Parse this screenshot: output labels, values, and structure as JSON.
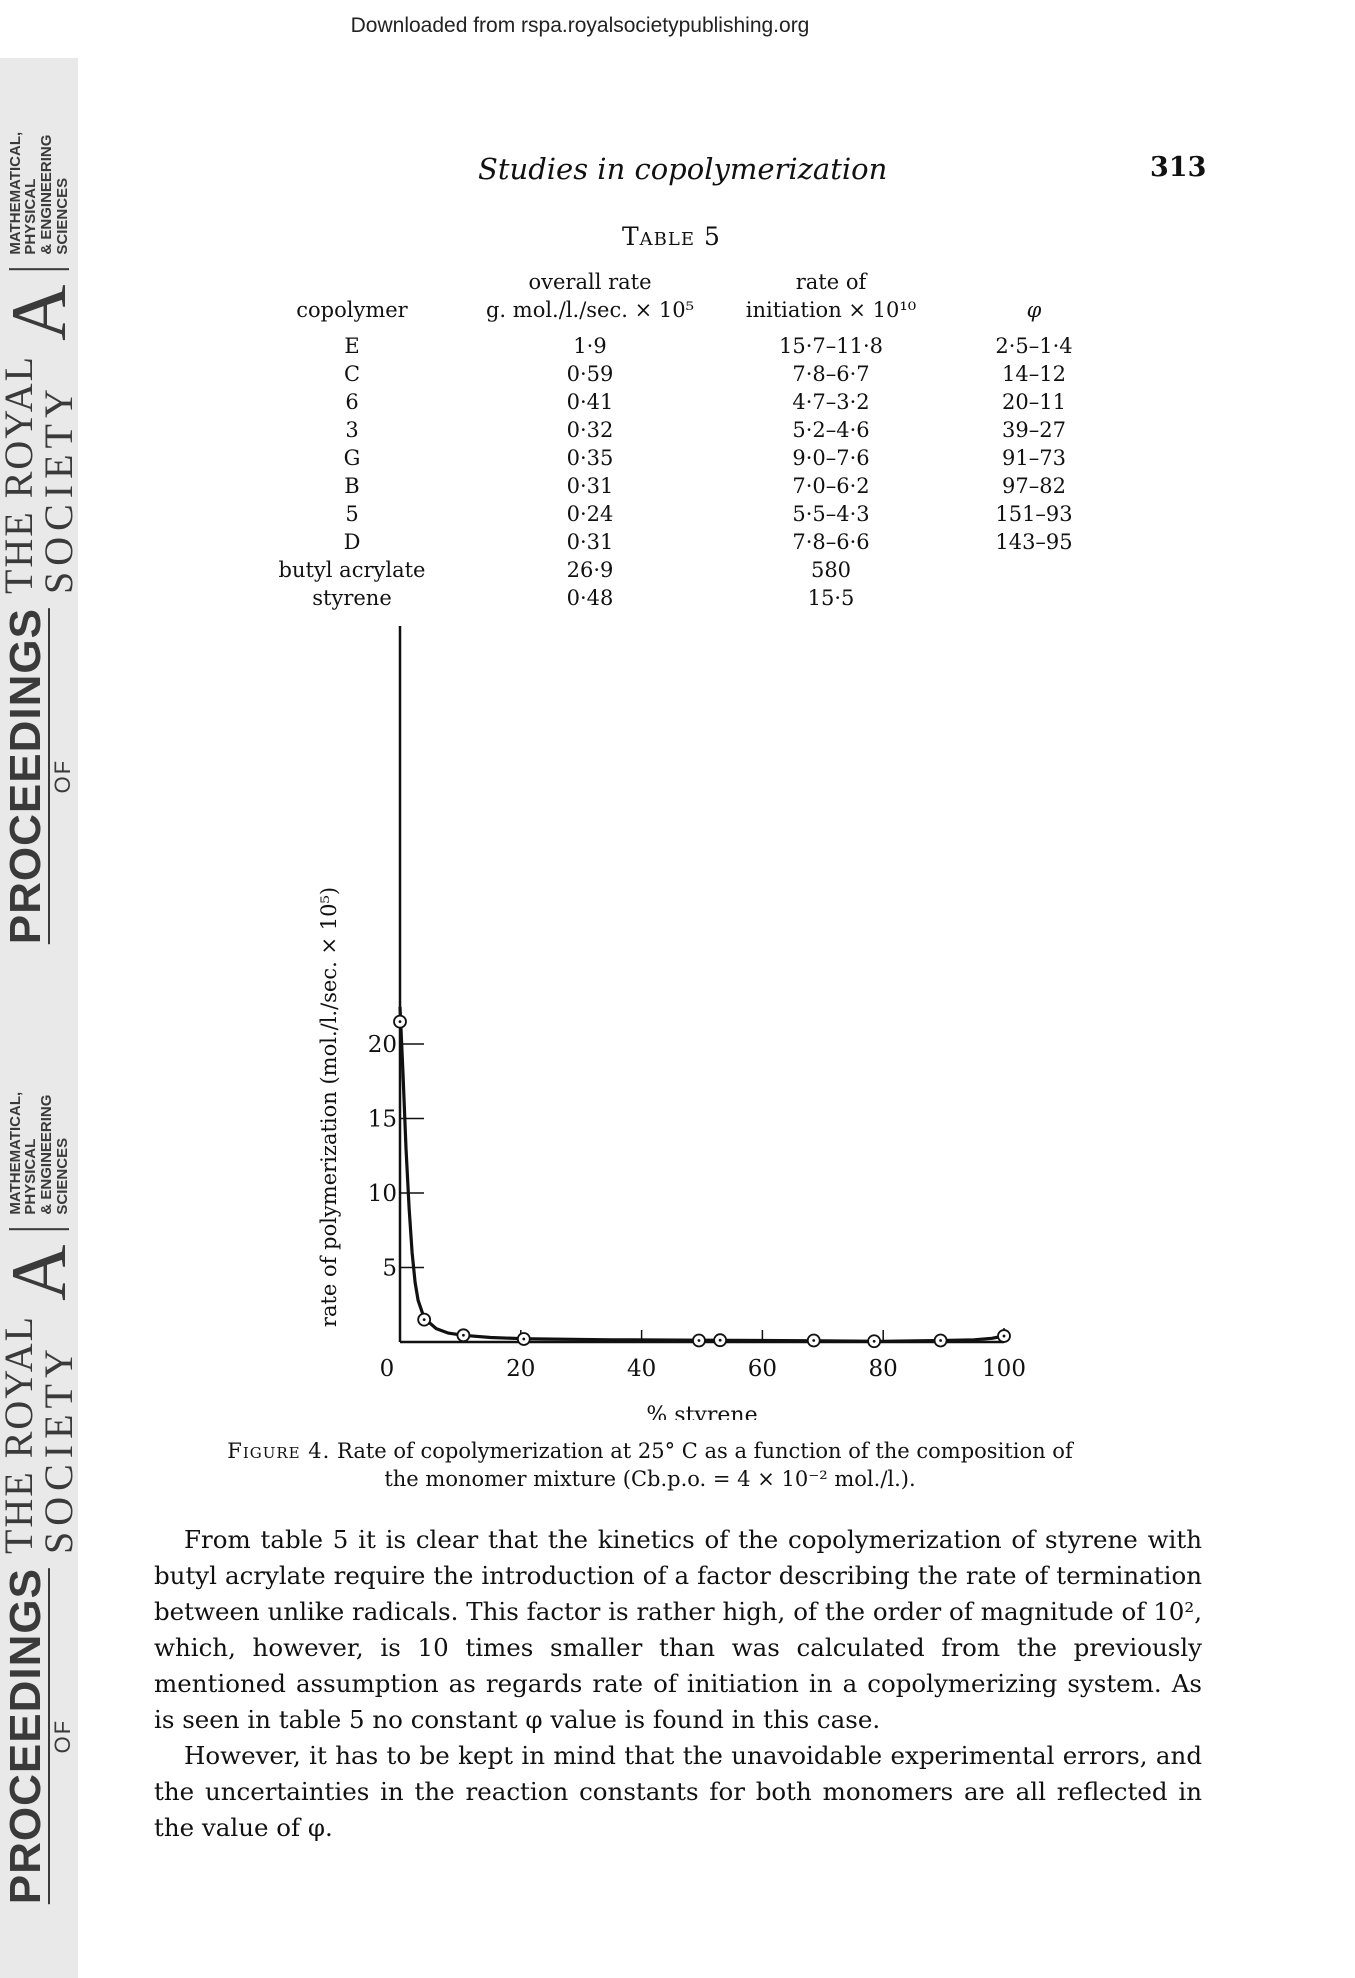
{
  "download_banner": "Downloaded from rspa.royalsocietypublishing.org",
  "sidebar": {
    "proceedings": "PROCEEDINGS",
    "of": "OF",
    "the_royal": "THE ROYAL",
    "society": "SOCIETY",
    "letter": "A",
    "math_lines": [
      "MATHEMATICAL,",
      "PHYSICAL",
      "& ENGINEERING",
      "SCIENCES"
    ]
  },
  "running_head": {
    "title": "Studies in copolymerization",
    "page": "313"
  },
  "table": {
    "caption": "Table 5",
    "headers": {
      "copolymer": "copolymer",
      "overall_rate_1": "overall rate",
      "overall_rate_2": "g. mol./l./sec. × 10⁵",
      "rate_init_1": "rate of",
      "rate_init_2": "initiation × 10¹⁰",
      "phi": "φ"
    },
    "rows": [
      [
        "E",
        "1·9",
        "15·7–11·8",
        "2·5–1·4"
      ],
      [
        "C",
        "0·59",
        "7·8–6·7",
        "14–12"
      ],
      [
        "6",
        "0·41",
        "4·7–3·2",
        "20–11"
      ],
      [
        "3",
        "0·32",
        "5·2–4·6",
        "39–27"
      ],
      [
        "G",
        "0·35",
        "9·0–7·6",
        "91–73"
      ],
      [
        "B",
        "0·31",
        "7·0–6·2",
        "97–82"
      ],
      [
        "5",
        "0·24",
        "5·5–4·3",
        "151–93"
      ],
      [
        "D",
        "0·31",
        "7·8–6·6",
        "143–95"
      ],
      [
        "butyl acrylate",
        "26·9",
        "580",
        ""
      ],
      [
        "styrene",
        "0·48",
        "15·5",
        ""
      ]
    ]
  },
  "chart_data": {
    "type": "line",
    "xlabel": "% styrene",
    "ylabel": "rate of polymerization (mol./l./sec. × 10⁵)",
    "xlim": [
      0,
      100
    ],
    "ylim": [
      0,
      23
    ],
    "x_ticks": [
      "0",
      "20",
      "40",
      "60",
      "80",
      "100"
    ],
    "y_ticks": [
      "5",
      "10",
      "15",
      "20"
    ],
    "points": [
      {
        "x": 0,
        "y": 21.5
      },
      {
        "x": 4,
        "y": 1.5
      },
      {
        "x": 10.5,
        "y": 0.45
      },
      {
        "x": 20.5,
        "y": 0.2
      },
      {
        "x": 49.5,
        "y": 0.1
      },
      {
        "x": 53,
        "y": 0.12
      },
      {
        "x": 68.5,
        "y": 0.1
      },
      {
        "x": 78.5,
        "y": 0.05
      },
      {
        "x": 89.5,
        "y": 0.1
      },
      {
        "x": 100,
        "y": 0.4
      }
    ],
    "curve": [
      [
        0,
        22.5
      ],
      [
        0.5,
        18
      ],
      [
        1,
        13
      ],
      [
        1.5,
        9
      ],
      [
        2,
        6
      ],
      [
        2.5,
        4
      ],
      [
        3,
        2.8
      ],
      [
        4,
        1.6
      ],
      [
        6,
        0.9
      ],
      [
        8,
        0.6
      ],
      [
        10.5,
        0.45
      ],
      [
        15,
        0.3
      ],
      [
        20.5,
        0.22
      ],
      [
        35,
        0.15
      ],
      [
        50,
        0.12
      ],
      [
        60,
        0.1
      ],
      [
        70,
        0.08
      ],
      [
        80,
        0.05
      ],
      [
        90,
        0.1
      ],
      [
        95,
        0.15
      ],
      [
        98,
        0.25
      ],
      [
        100,
        0.4
      ]
    ]
  },
  "figure_caption": {
    "label": "Figure 4.",
    "line1": "Rate of copolymerization at 25° C as a function of the composition of",
    "line2": "the monomer mixture (Cb.p.o. = 4 × 10⁻² mol./l.)."
  },
  "body": {
    "para1": "From table 5 it is clear that the kinetics of the copolymerization of styrene with butyl acrylate require the introduction of a factor describing the rate of termination between unlike radicals. This factor is rather high, of the order of magnitude of 10², which, however, is 10 times smaller than was calculated from the previously mentioned assumption as regards rate of initiation in a copolymerizing system. As is seen in table 5 no constant φ value is found in this case.",
    "para2": "However, it has to be kept in mind that the unavoidable experimental errors, and the uncertainties in the reaction constants for both monomers are all reflected in the value of φ."
  }
}
